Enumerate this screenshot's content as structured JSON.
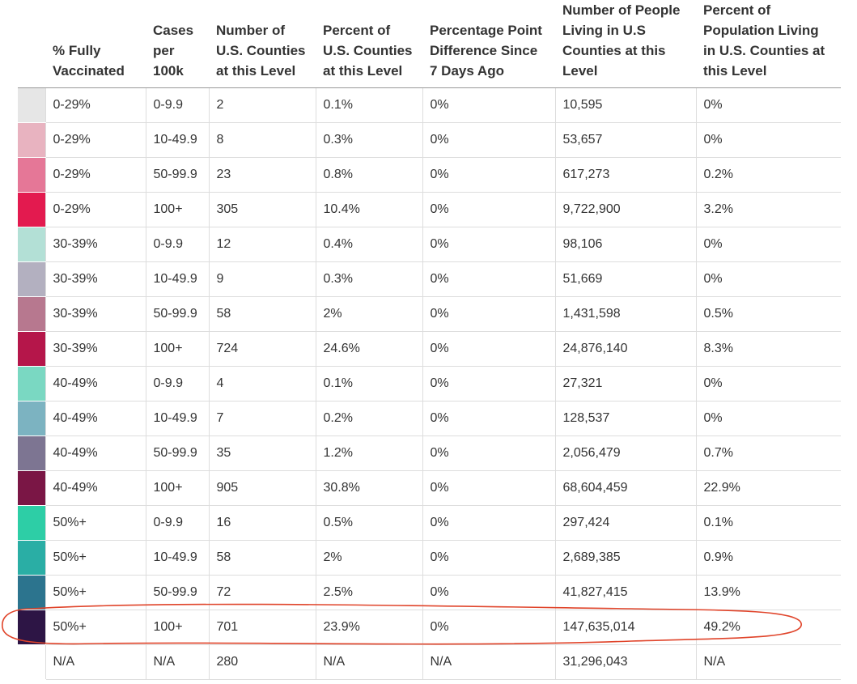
{
  "table": {
    "header": [
      [],
      [
        "% Fully",
        "Vaccinated"
      ],
      [
        "Cases",
        "per",
        "100k"
      ],
      [
        "Number of",
        "U.S. Counties",
        "at this Level"
      ],
      [
        "Percent of",
        "U.S. Counties",
        "at this Level"
      ],
      [
        "Percentage Point",
        "Difference Since",
        "7 Days Ago"
      ],
      [
        "Number of People",
        "Living in U.S",
        "Counties at this",
        "Level"
      ],
      [
        "Percent of",
        "Population Living",
        "in U.S. Counties at",
        "this Level"
      ]
    ],
    "rows": [
      {
        "swatch": "#e6e6e6",
        "cells": [
          "0-29%",
          "0-9.9",
          "2",
          "0.1%",
          "0%",
          "10,595",
          "0%"
        ]
      },
      {
        "swatch": "#e8b3c0",
        "cells": [
          "0-29%",
          "10-49.9",
          "8",
          "0.3%",
          "0%",
          "53,657",
          "0%"
        ]
      },
      {
        "swatch": "#e57797",
        "cells": [
          "0-29%",
          "50-99.9",
          "23",
          "0.8%",
          "0%",
          "617,273",
          "0.2%"
        ]
      },
      {
        "swatch": "#e31a4f",
        "cells": [
          "0-29%",
          "100+",
          "305",
          "10.4%",
          "0%",
          "9,722,900",
          "3.2%"
        ]
      },
      {
        "swatch": "#b3e0d6",
        "cells": [
          "30-39%",
          "0-9.9",
          "12",
          "0.4%",
          "0%",
          "98,106",
          "0%"
        ]
      },
      {
        "swatch": "#b3b0c0",
        "cells": [
          "30-39%",
          "10-49.9",
          "9",
          "0.3%",
          "0%",
          "51,669",
          "0%"
        ]
      },
      {
        "swatch": "#b7788f",
        "cells": [
          "30-39%",
          "50-99.9",
          "58",
          "2%",
          "0%",
          "1,431,598",
          "0.5%"
        ]
      },
      {
        "swatch": "#b5164a",
        "cells": [
          "30-39%",
          "100+",
          "724",
          "24.6%",
          "0%",
          "24,876,140",
          "8.3%"
        ]
      },
      {
        "swatch": "#7ad8c2",
        "cells": [
          "40-49%",
          "0-9.9",
          "4",
          "0.1%",
          "0%",
          "27,321",
          "0%"
        ]
      },
      {
        "swatch": "#7cb3c1",
        "cells": [
          "40-49%",
          "10-49.9",
          "7",
          "0.2%",
          "0%",
          "128,537",
          "0%"
        ]
      },
      {
        "swatch": "#7d7592",
        "cells": [
          "40-49%",
          "50-99.9",
          "35",
          "1.2%",
          "0%",
          "2,056,479",
          "0.7%"
        ]
      },
      {
        "swatch": "#7a1645",
        "cells": [
          "40-49%",
          "100+",
          "905",
          "30.8%",
          "0%",
          "68,604,459",
          "22.9%"
        ]
      },
      {
        "swatch": "#2dcea6",
        "cells": [
          "50%+",
          "0-9.9",
          "16",
          "0.5%",
          "0%",
          "297,424",
          "0.1%"
        ]
      },
      {
        "swatch": "#2aaea5",
        "cells": [
          "50%+",
          "10-49.9",
          "58",
          "2%",
          "0%",
          "2,689,385",
          "0.9%"
        ]
      },
      {
        "swatch": "#2c748e",
        "cells": [
          "50%+",
          "50-99.9",
          "72",
          "2.5%",
          "0%",
          "41,827,415",
          "13.9%"
        ]
      },
      {
        "swatch": "#2d1545",
        "cells": [
          "50%+",
          "100+",
          "701",
          "23.9%",
          "0%",
          "147,635,014",
          "49.2%"
        ]
      },
      {
        "cells": [
          "N/A",
          "N/A",
          "280",
          "N/A",
          "N/A",
          "31,296,043",
          "N/A"
        ]
      }
    ]
  }
}
